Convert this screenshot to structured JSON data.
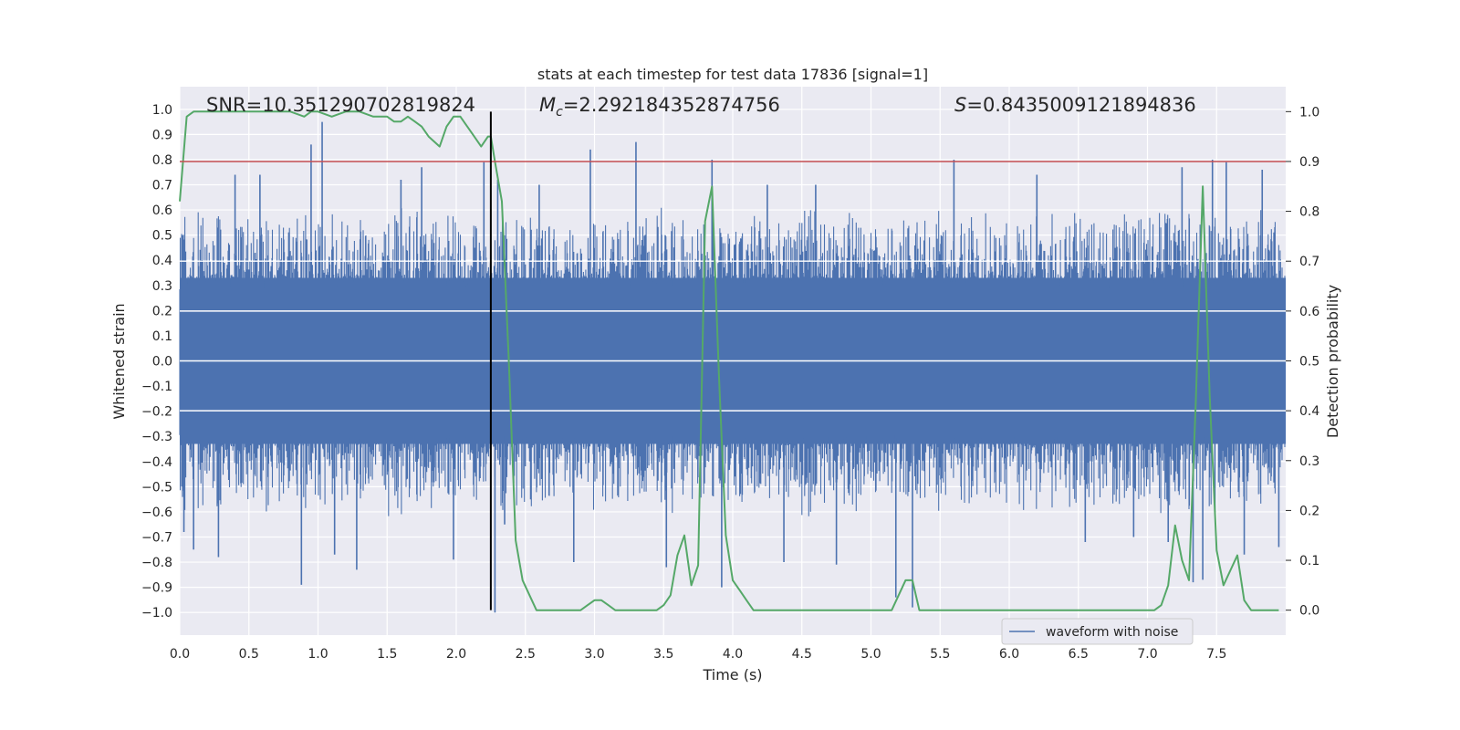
{
  "chart_data": {
    "type": "line",
    "title": "stats at each timestep for test data 17836 [signal=1]",
    "xlabel": "Time (s)",
    "ylabel_left": "Whitened strain",
    "ylabel_right": "Detection probability",
    "xlim": [
      0.0,
      8.0
    ],
    "ylim_left": [
      -1.09,
      1.09
    ],
    "ylim_right": [
      -0.05,
      1.05
    ],
    "x_ticks": [
      "0.0",
      "0.5",
      "1.0",
      "1.5",
      "2.0",
      "2.5",
      "3.0",
      "3.5",
      "4.0",
      "4.5",
      "5.0",
      "5.5",
      "6.0",
      "6.5",
      "7.0",
      "7.5"
    ],
    "y_left_ticks": [
      "1.0",
      "0.9",
      "0.8",
      "0.7",
      "0.6",
      "0.5",
      "0.4",
      "0.3",
      "0.2",
      "0.1",
      "0.0",
      "−0.1",
      "−0.2",
      "−0.3",
      "−0.4",
      "−0.5",
      "−0.6",
      "−0.7",
      "−0.8",
      "−0.9",
      "−1.0"
    ],
    "y_right_ticks": [
      "1.0",
      "0.9",
      "0.8",
      "0.7",
      "0.6",
      "0.5",
      "0.4",
      "0.3",
      "0.2",
      "0.1",
      "0.0"
    ],
    "grid": true,
    "annotations": {
      "snr": "SNR=10.351290702819824",
      "mc_symbol": "M",
      "mc_sub": "c",
      "mc_value": "=2.292184352874756",
      "s_symbol": "S",
      "s_value": "=0.8435009121894836"
    },
    "threshold_right": 0.9,
    "vertical_marker_x": 2.25,
    "legend": {
      "label": "waveform with noise",
      "position": "lower-right"
    },
    "colors": {
      "waveform": "#4c72b0",
      "probability": "#55a868",
      "threshold": "#c44e52",
      "marker": "#000000",
      "background": "#eaeaf2"
    },
    "waveform_noise_seed": 17836,
    "waveform_spikes": [
      {
        "x": 0.03,
        "y": -0.68
      },
      {
        "x": 0.1,
        "y": -0.75
      },
      {
        "x": 0.28,
        "y": -0.78
      },
      {
        "x": 0.4,
        "y": 0.74
      },
      {
        "x": 0.58,
        "y": 0.74
      },
      {
        "x": 0.88,
        "y": -0.89
      },
      {
        "x": 0.95,
        "y": 0.86
      },
      {
        "x": 1.03,
        "y": 0.95
      },
      {
        "x": 1.12,
        "y": -0.77
      },
      {
        "x": 1.28,
        "y": -0.83
      },
      {
        "x": 1.6,
        "y": 0.72
      },
      {
        "x": 1.75,
        "y": 0.77
      },
      {
        "x": 1.98,
        "y": -0.79
      },
      {
        "x": 2.2,
        "y": 0.79
      },
      {
        "x": 2.28,
        "y": -1.0
      },
      {
        "x": 2.3,
        "y": 0.72
      },
      {
        "x": 2.35,
        "y": -0.65
      },
      {
        "x": 2.6,
        "y": 0.7
      },
      {
        "x": 2.85,
        "y": -0.8
      },
      {
        "x": 2.97,
        "y": 0.84
      },
      {
        "x": 3.3,
        "y": 0.87
      },
      {
        "x": 3.52,
        "y": -0.82
      },
      {
        "x": 3.85,
        "y": 0.8
      },
      {
        "x": 3.92,
        "y": -0.9
      },
      {
        "x": 4.25,
        "y": 0.7
      },
      {
        "x": 4.37,
        "y": -0.8
      },
      {
        "x": 4.6,
        "y": 0.7
      },
      {
        "x": 4.75,
        "y": -0.81
      },
      {
        "x": 5.18,
        "y": -0.94
      },
      {
        "x": 5.3,
        "y": -0.98
      },
      {
        "x": 5.6,
        "y": 0.8
      },
      {
        "x": 6.2,
        "y": 0.74
      },
      {
        "x": 6.55,
        "y": -0.72
      },
      {
        "x": 6.9,
        "y": -0.7
      },
      {
        "x": 7.15,
        "y": -0.72
      },
      {
        "x": 7.25,
        "y": 0.77
      },
      {
        "x": 7.33,
        "y": -0.88
      },
      {
        "x": 7.4,
        "y": -0.87
      },
      {
        "x": 7.47,
        "y": 0.8
      },
      {
        "x": 7.57,
        "y": 0.79
      },
      {
        "x": 7.7,
        "y": -0.77
      },
      {
        "x": 7.83,
        "y": 0.76
      },
      {
        "x": 7.95,
        "y": -0.74
      }
    ],
    "series": [
      {
        "name": "waveform with noise",
        "envelope": {
          "dense_abs": 0.33,
          "max_abs": 0.62
        }
      },
      {
        "x": [
          0.0,
          0.05,
          0.1,
          0.15,
          0.2,
          0.3,
          0.4,
          0.5,
          0.6,
          0.7,
          0.75,
          0.8,
          0.9,
          0.95,
          1.0,
          1.1,
          1.2,
          1.25,
          1.3,
          1.4,
          1.5,
          1.55,
          1.6,
          1.65,
          1.7,
          1.75,
          1.8,
          1.88,
          1.93,
          1.98,
          2.03,
          2.08,
          2.13,
          2.18,
          2.23,
          2.25,
          2.28,
          2.33,
          2.38,
          2.43,
          2.48,
          2.53,
          2.58,
          2.63,
          2.7,
          2.8,
          2.9,
          2.95,
          3.0,
          3.05,
          3.1,
          3.15,
          3.2,
          3.3,
          3.45,
          3.5,
          3.55,
          3.6,
          3.65,
          3.7,
          3.75,
          3.8,
          3.85,
          3.9,
          3.95,
          4.0,
          4.05,
          4.1,
          4.15,
          4.25,
          4.35,
          4.45,
          4.55,
          4.65,
          4.75,
          4.85,
          4.95,
          5.05,
          5.15,
          5.25,
          5.3,
          5.35,
          5.4,
          5.45,
          5.5,
          5.55,
          5.6,
          5.7,
          5.8,
          5.9,
          6.0,
          6.2,
          6.4,
          6.6,
          6.8,
          7.0,
          7.05,
          7.1,
          7.15,
          7.2,
          7.25,
          7.3,
          7.35,
          7.4,
          7.45,
          7.5,
          7.55,
          7.6,
          7.65,
          7.7,
          7.75,
          7.8,
          7.85,
          7.9,
          7.95
        ],
        "y": [
          0.82,
          0.99,
          1.0,
          1.0,
          1.0,
          1.0,
          1.0,
          1.0,
          1.0,
          1.0,
          1.0,
          1.0,
          0.99,
          1.0,
          1.0,
          0.99,
          1.0,
          1.0,
          1.0,
          0.99,
          0.99,
          0.98,
          0.98,
          0.99,
          0.98,
          0.97,
          0.95,
          0.93,
          0.97,
          0.99,
          0.99,
          0.97,
          0.95,
          0.93,
          0.95,
          0.95,
          0.9,
          0.82,
          0.5,
          0.14,
          0.06,
          0.03,
          0.0,
          0.0,
          0.0,
          0.0,
          0.0,
          0.01,
          0.02,
          0.02,
          0.01,
          0.0,
          0.0,
          0.0,
          0.0,
          0.01,
          0.03,
          0.11,
          0.15,
          0.05,
          0.09,
          0.78,
          0.85,
          0.47,
          0.15,
          0.06,
          0.04,
          0.02,
          0.0,
          0.0,
          0.0,
          0.0,
          0.0,
          0.0,
          0.0,
          0.0,
          0.0,
          0.0,
          0.0,
          0.06,
          0.06,
          0.0,
          0.0,
          0.0,
          0.0,
          0.0,
          0.0,
          0.0,
          0.0,
          0.0,
          0.0,
          0.0,
          0.0,
          0.0,
          0.0,
          0.0,
          0.0,
          0.01,
          0.05,
          0.17,
          0.1,
          0.06,
          0.42,
          0.85,
          0.43,
          0.12,
          0.05,
          0.08,
          0.11,
          0.02,
          0.0,
          0.0,
          0.0,
          0.0,
          0.0
        ]
      }
    ]
  }
}
